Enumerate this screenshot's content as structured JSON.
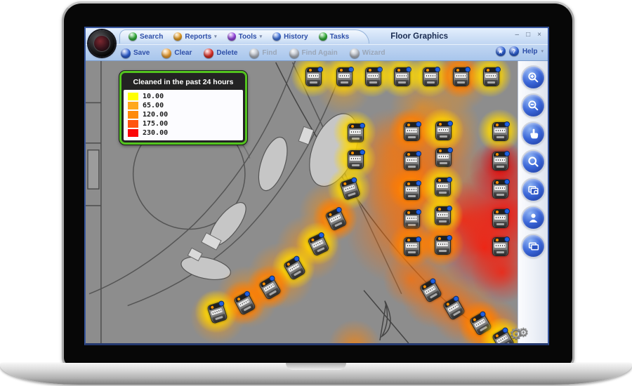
{
  "window": {
    "title": "Floor Graphics",
    "controls": [
      {
        "name": "minimize",
        "glyph": "–"
      },
      {
        "name": "maximize",
        "glyph": "□"
      },
      {
        "name": "close",
        "glyph": "×"
      }
    ]
  },
  "menubar": {
    "items": [
      {
        "label": "Search",
        "color": "#35b53a",
        "dropdown": false
      },
      {
        "label": "Reports",
        "color": "#f0a424",
        "dropdown": true
      },
      {
        "label": "Tools",
        "color": "#9a46e8",
        "dropdown": true
      },
      {
        "label": "History",
        "color": "#4479e8",
        "dropdown": false
      },
      {
        "label": "Tasks",
        "color": "#35b53a",
        "dropdown": false
      }
    ]
  },
  "toolbar": {
    "buttons": [
      {
        "label": "Save",
        "color": "#2f62d8",
        "enabled": true
      },
      {
        "label": "Clear",
        "color": "#f0a438",
        "enabled": true
      },
      {
        "label": "Delete",
        "color": "#e03028",
        "enabled": true
      },
      {
        "label": "Find",
        "color": "#b9bfc9",
        "enabled": false
      },
      {
        "label": "Find Again",
        "color": "#b9bfc9",
        "enabled": false
      },
      {
        "label": "Wizard",
        "color": "#b9bfc9",
        "enabled": false
      }
    ],
    "star_glyph": "★",
    "help_glyph": "?",
    "help_label": "Help",
    "help_caret": "▾"
  },
  "legend": {
    "title": "Cleaned in the past 24 hours",
    "entries": [
      {
        "color": "#ffff00",
        "value": "10.00"
      },
      {
        "color": "#ffa81c",
        "value": "65.00"
      },
      {
        "color": "#ff8a0a",
        "value": "120.00"
      },
      {
        "color": "#ff5510",
        "value": "175.00"
      },
      {
        "color": "#fb0606",
        "value": "230.00"
      }
    ]
  },
  "sidebar": {
    "buttons": [
      {
        "name": "zoom-in-button",
        "icon": "zoom-in"
      },
      {
        "name": "zoom-out-button",
        "icon": "zoom-out"
      },
      {
        "name": "pan-button",
        "icon": "pan"
      },
      {
        "name": "search-map-button",
        "icon": "search"
      },
      {
        "name": "map-view-button",
        "icon": "map-view"
      },
      {
        "name": "user-button",
        "icon": "user"
      },
      {
        "name": "displays-button",
        "icon": "displays"
      }
    ],
    "gear_glyph": "⚙"
  },
  "map": {
    "machines": [
      [
        323,
        21,
        0,
        "yellow"
      ],
      [
        367,
        21,
        0,
        "yellow"
      ],
      [
        408,
        21,
        0,
        "yellow"
      ],
      [
        449,
        21,
        0,
        "yellow"
      ],
      [
        490,
        21,
        0,
        "yellow"
      ],
      [
        533,
        21,
        0,
        "orange"
      ],
      [
        576,
        21,
        0,
        "yellow"
      ],
      [
        383,
        101,
        0,
        "yellow"
      ],
      [
        383,
        139,
        0,
        "yellow"
      ],
      [
        375,
        181,
        -18,
        "yellow"
      ],
      [
        355,
        224,
        -25,
        "orange"
      ],
      [
        330,
        260,
        -25,
        "yellow"
      ],
      [
        296,
        294,
        -30,
        "yellow"
      ],
      [
        261,
        322,
        -30,
        "orange"
      ],
      [
        225,
        344,
        -28,
        "orange"
      ],
      [
        186,
        357,
        -18,
        "yellow"
      ],
      [
        463,
        99,
        0,
        "orange"
      ],
      [
        463,
        141,
        0,
        "none"
      ],
      [
        463,
        183,
        0,
        "orange"
      ],
      [
        463,
        224,
        0,
        "none"
      ],
      [
        463,
        263,
        0,
        "orange"
      ],
      [
        508,
        98,
        0,
        "yellow"
      ],
      [
        508,
        136,
        0,
        "none"
      ],
      [
        507,
        178,
        0,
        "yellow"
      ],
      [
        507,
        219,
        0,
        "yellow"
      ],
      [
        507,
        261,
        0,
        "orange"
      ],
      [
        589,
        99,
        0,
        "yellow"
      ],
      [
        589,
        141,
        0,
        "none"
      ],
      [
        589,
        181,
        0,
        "none"
      ],
      [
        589,
        223,
        0,
        "none"
      ],
      [
        589,
        263,
        0,
        "none"
      ],
      [
        490,
        326,
        -30,
        "none"
      ],
      [
        523,
        351,
        -30,
        "none"
      ],
      [
        561,
        373,
        -30,
        "orange"
      ],
      [
        593,
        396,
        -30,
        "yellow"
      ]
    ],
    "heat_blobs": [
      [
        478,
        66,
        45,
        "rgba(255,140,0,0.5)"
      ],
      [
        367,
        38,
        40,
        "rgba(255,160,0,0.45)"
      ],
      [
        533,
        31,
        42,
        "rgba(255,140,0,0.6)"
      ],
      [
        508,
        96,
        55,
        "rgba(255,140,0,0.7)"
      ],
      [
        438,
        126,
        60,
        "rgba(255,120,0,0.6)"
      ],
      [
        478,
        156,
        95,
        "rgba(255,110,0,0.8)"
      ],
      [
        438,
        176,
        50,
        "rgba(255,120,0,0.55)"
      ],
      [
        453,
        236,
        85,
        "rgba(255,110,0,0.75)"
      ],
      [
        591,
        141,
        30,
        "rgba(220,0,0,0.6)"
      ],
      [
        590,
        156,
        45,
        "rgba(230,0,0,0.75)"
      ],
      [
        596,
        216,
        75,
        "rgba(255,10,0,0.85)"
      ],
      [
        538,
        226,
        55,
        "rgba(255,30,0,0.7)"
      ],
      [
        568,
        266,
        65,
        "rgba(255,20,0,0.8)"
      ],
      [
        593,
        301,
        45,
        "rgba(255,20,0,0.7)"
      ],
      [
        348,
        216,
        45,
        "rgba(255,140,0,0.7)"
      ],
      [
        318,
        266,
        48,
        "rgba(255,140,0,0.7)"
      ],
      [
        278,
        306,
        48,
        "rgba(255,140,0,0.7)"
      ],
      [
        230,
        336,
        45,
        "rgba(255,140,0,0.7)"
      ],
      [
        188,
        364,
        40,
        "rgba(255,150,0,0.7)"
      ],
      [
        463,
        311,
        40,
        "rgba(255,110,0,0.7)"
      ],
      [
        498,
        331,
        50,
        "rgba(255,110,0,0.8)"
      ],
      [
        538,
        356,
        48,
        "rgba(255,110,0,0.8)"
      ],
      [
        578,
        381,
        45,
        "rgba(255,110,0,0.8)"
      ],
      [
        383,
        406,
        38,
        "rgba(255,130,0,0.7)"
      ],
      [
        571,
        394,
        40,
        "rgba(255,150,0,0.6)"
      ]
    ]
  }
}
